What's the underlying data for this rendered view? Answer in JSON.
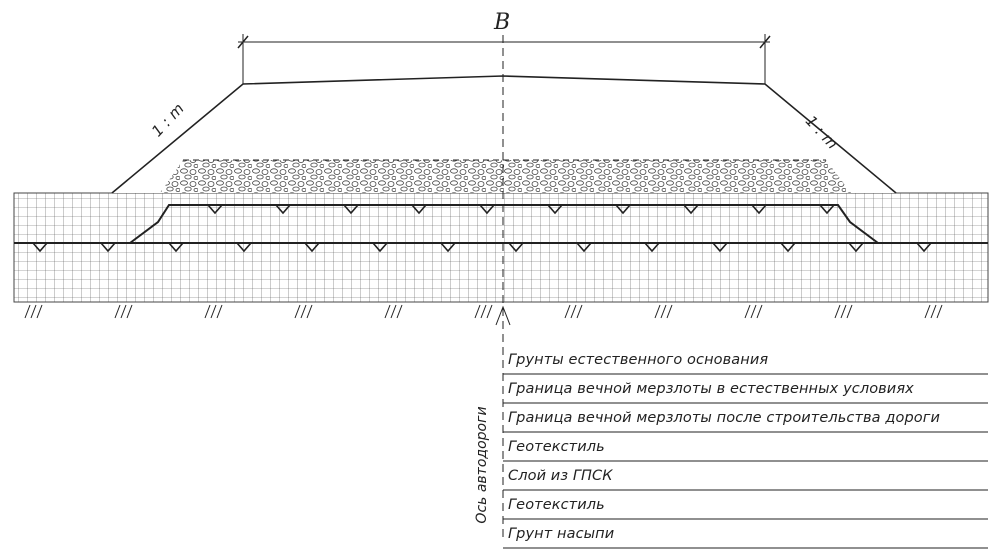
{
  "diagram": {
    "width_label": "B",
    "slope_label_left": "1 : m",
    "slope_label_right": "1 : m",
    "axis_label": "Ось автодороги",
    "legend": [
      "Грунты естественного основания",
      "Граница вечной мерзлоты в естественных условиях",
      "Граница вечной мерзлоты после строительства дороги",
      "Геотекстиль",
      "Слой из ГПСК",
      "Геотекстиль",
      "Грунт насыпи"
    ]
  }
}
